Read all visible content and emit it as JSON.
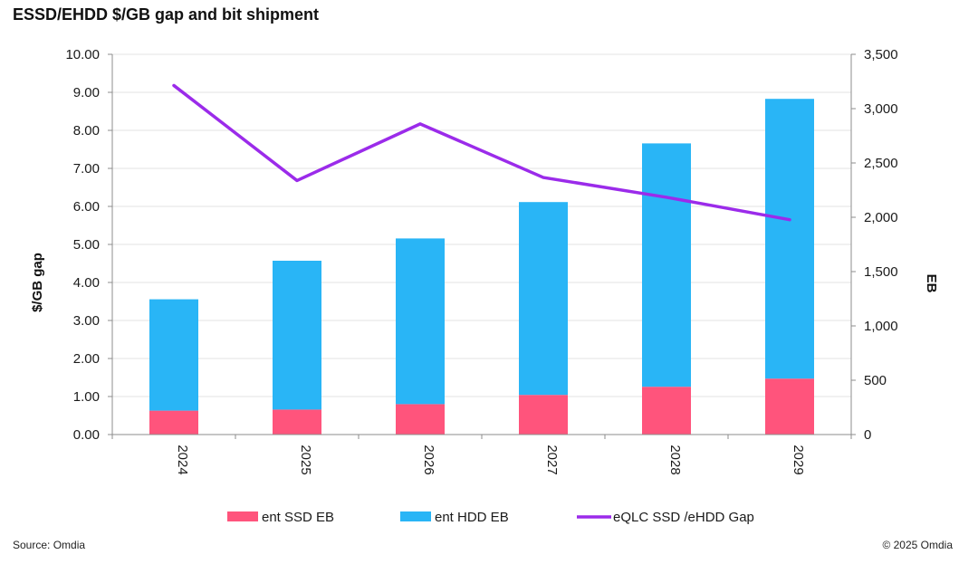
{
  "chart_data": {
    "type": "bar",
    "stacked": true,
    "title": "ESSD/EHDD $/GB gap and bit shipment",
    "categories": [
      "2024",
      "2025",
      "2026",
      "2027",
      "2028",
      "2029"
    ],
    "series": [
      {
        "name": "ent SSD EB",
        "axis": "right",
        "type": "bar",
        "color": "#ff547c",
        "values": [
          220,
          230,
          280,
          365,
          440,
          515
        ]
      },
      {
        "name": "ent HDD EB",
        "axis": "right",
        "type": "bar",
        "color": "#29b5f6",
        "values": [
          1025,
          1370,
          1525,
          1775,
          2240,
          2575
        ]
      },
      {
        "name": "eQLC SSD /eHDD Gap",
        "axis": "left",
        "type": "line",
        "color": "#9b2bea",
        "values": [
          9.18,
          6.68,
          8.17,
          6.76,
          6.24,
          5.65
        ]
      }
    ],
    "ylabel": "$/GB  gap",
    "y2label": "EB",
    "ylim": [
      0,
      10
    ],
    "y2lim": [
      0,
      3500
    ],
    "yticks": [
      "0.00",
      "1.00",
      "2.00",
      "3.00",
      "4.00",
      "5.00",
      "6.00",
      "7.00",
      "8.00",
      "9.00",
      "10.00"
    ],
    "y2ticks": [
      "0",
      "500",
      "1,000",
      "1,500",
      "2,000",
      "2,500",
      "3,000",
      "3,500"
    ],
    "legend": "bottom",
    "grid": true
  },
  "source": "Source: Omdia",
  "copyright": "© 2025 Omdia"
}
